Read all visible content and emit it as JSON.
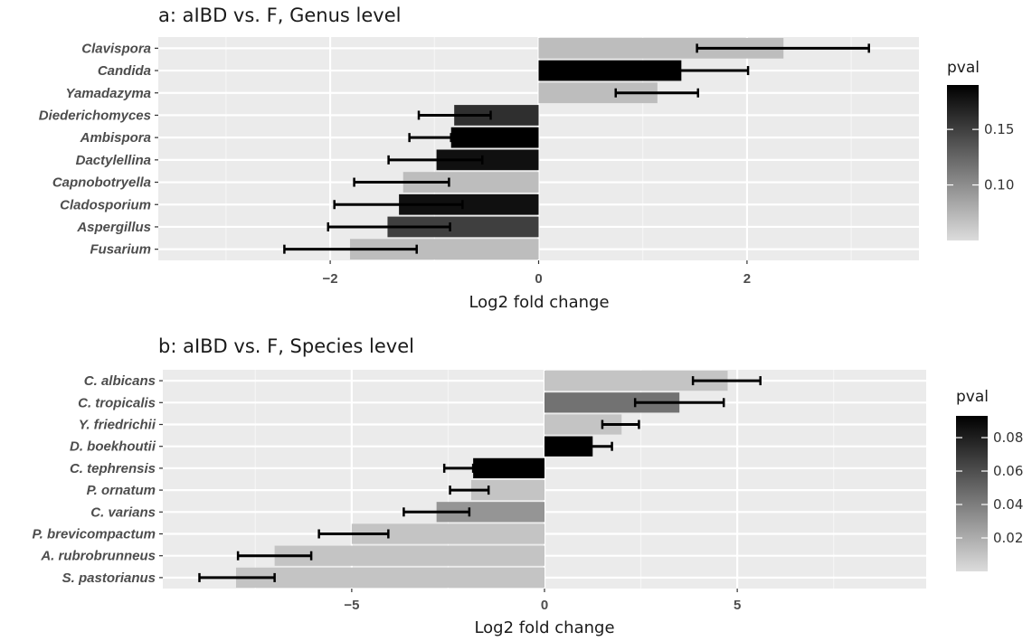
{
  "chart_data": [
    {
      "type": "bar",
      "orientation": "horizontal",
      "title": "a: aIBD vs. F, Genus level",
      "xlabel": "Log2 fold change",
      "ylabel": "",
      "xlim": [
        -3.65,
        3.65
      ],
      "xticks": [
        -2,
        0,
        2
      ],
      "tick_labels": [
        "−2",
        "0",
        "2"
      ],
      "grid": true,
      "legend": {
        "title": "pval",
        "position": "right",
        "min": 0.05,
        "max": 0.19,
        "ticks": [
          0.1,
          0.15
        ],
        "tick_labels": [
          "0.10",
          "0.15"
        ]
      },
      "categories": [
        "Clavispora",
        "Candida",
        "Yamadazyma",
        "Diederichomyces",
        "Ambispora",
        "Dactylellina",
        "Capnobotryella",
        "Cladosporium",
        "Aspergillus",
        "Fusarium"
      ],
      "values": [
        2.35,
        1.37,
        1.14,
        -0.81,
        -0.84,
        -0.98,
        -1.3,
        -1.34,
        -1.45,
        -1.81
      ],
      "error_low": [
        1.52,
        0.7,
        0.74,
        -1.15,
        -1.24,
        -1.44,
        -1.77,
        -1.96,
        -2.02,
        -2.44
      ],
      "error_high": [
        3.17,
        2.01,
        1.53,
        -0.46,
        -0.84,
        -0.54,
        -0.86,
        -0.73,
        -0.85,
        -1.17
      ],
      "pval": [
        0.07,
        0.19,
        0.07,
        0.16,
        0.19,
        0.18,
        0.07,
        0.18,
        0.15,
        0.07
      ]
    },
    {
      "type": "bar",
      "orientation": "horizontal",
      "title": "b: aIBD vs. F, Species level",
      "xlabel": "Log2 fold change",
      "ylabel": "",
      "xlim": [
        -9.9,
        9.9
      ],
      "xticks": [
        -5,
        0,
        5
      ],
      "tick_labels": [
        "−5",
        "0",
        "5"
      ],
      "grid": true,
      "legend": {
        "title": "pval",
        "position": "right",
        "min": 0.0,
        "max": 0.093,
        "ticks": [
          0.02,
          0.04,
          0.06,
          0.08
        ],
        "tick_labels": [
          "0.02",
          "0.04",
          "0.06",
          "0.08"
        ]
      },
      "categories": [
        "C. albicans",
        "C. tropicalis",
        "Y. friedrichii",
        "D. boekhoutii",
        "C. tephrensis",
        "P. ornatum",
        "C. varians",
        "P. brevicompactum",
        "A. rubrobrunneus",
        "S. pastorianus"
      ],
      "values": [
        4.75,
        3.5,
        2.0,
        1.25,
        -1.85,
        -1.9,
        -2.8,
        -5.0,
        -7.0,
        -8.0
      ],
      "error_low": [
        3.85,
        2.35,
        1.5,
        0.75,
        -2.6,
        -2.45,
        -3.65,
        -5.85,
        -7.95,
        -8.95
      ],
      "error_high": [
        5.6,
        4.65,
        2.45,
        1.75,
        -1.85,
        -1.45,
        -1.95,
        -4.05,
        -6.05,
        -7.0
      ],
      "pval": [
        0.01,
        0.045,
        0.01,
        0.093,
        0.093,
        0.01,
        0.03,
        0.01,
        0.01,
        0.01
      ]
    }
  ]
}
